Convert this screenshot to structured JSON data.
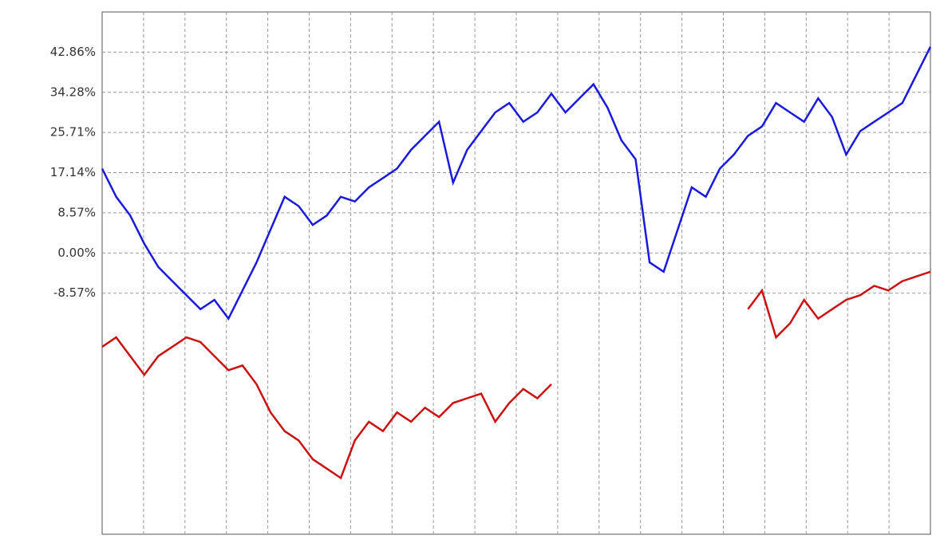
{
  "chart_data": {
    "type": "line",
    "ylim": [
      -60,
      51.43
    ],
    "yticks": [
      {
        "value": 42.86,
        "label": "42.86%"
      },
      {
        "value": 34.28,
        "label": "34.28%"
      },
      {
        "value": 25.71,
        "label": "25.71%"
      },
      {
        "value": 17.14,
        "label": "17.14%"
      },
      {
        "value": 8.57,
        "label": "8.57%"
      },
      {
        "value": 0,
        "label": "0.00%"
      },
      {
        "value": -8.57,
        "label": "-8.57%"
      }
    ],
    "grid": true,
    "series": [
      {
        "color": "#1a1adc",
        "values": [
          18,
          12,
          8,
          2,
          -3,
          -6,
          -9,
          -12,
          -10,
          -14,
          -8,
          -2,
          5,
          12,
          10,
          6,
          8,
          12,
          11,
          14,
          16,
          18,
          22,
          25,
          28,
          15,
          22,
          26,
          30,
          32,
          28,
          30,
          34,
          30,
          33,
          36,
          31,
          24,
          20,
          -2,
          -4,
          5,
          14,
          12,
          18,
          21,
          25,
          27,
          32,
          30,
          28,
          33,
          29,
          21,
          26,
          28,
          30,
          32,
          38,
          44
        ]
      },
      {
        "color": "#cc1111",
        "values": [
          -20,
          -18,
          -22,
          -26,
          -22,
          -20,
          -18,
          -19,
          -22,
          -25,
          -24,
          -28,
          -34,
          -38,
          -40,
          -44,
          -46,
          -48,
          -40,
          -36,
          -38,
          -34,
          -36,
          -33,
          -35,
          -32,
          -31,
          -30,
          -36,
          -32,
          -29,
          -31,
          -28,
          null,
          null,
          null,
          null,
          null,
          null,
          null,
          null,
          null,
          null,
          null,
          null,
          null,
          -12,
          -8,
          -18,
          -15,
          -10,
          -14,
          -12,
          -10,
          -9,
          -7,
          -8,
          -6,
          -5,
          -4
        ]
      }
    ]
  }
}
